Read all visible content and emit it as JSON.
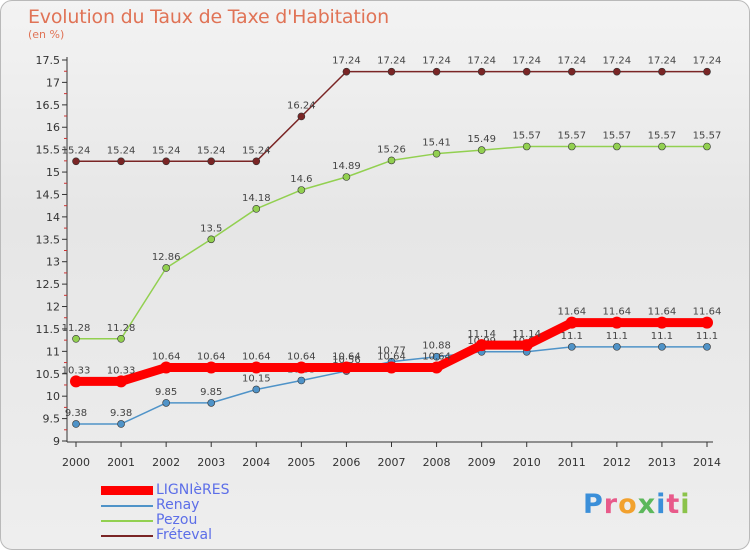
{
  "title": "Evolution du Taux de Taxe d'Habitation",
  "subtitle": "(en %)",
  "logo": {
    "text": "Proxiti"
  },
  "chart_data": {
    "type": "line",
    "title": "Evolution du Taux de Taxe d'Habitation",
    "ylabel": "(en %)",
    "xlabel": "",
    "ylim": [
      9,
      17.5
    ],
    "grid": false,
    "legend_position": "bottom-left",
    "yticks": [
      "9",
      "9.5",
      "10",
      "10.5",
      "11",
      "11.5",
      "12",
      "12.5",
      "13",
      "13.5",
      "14",
      "14.5",
      "15",
      "15.5",
      "16",
      "16.5",
      "17",
      "17.5"
    ],
    "categories": [
      "2000",
      "2001",
      "2002",
      "2003",
      "2004",
      "2005",
      "2006",
      "2007",
      "2008",
      "2009",
      "2010",
      "2011",
      "2012",
      "2013",
      "2014"
    ],
    "series": [
      {
        "name": "Fréteval",
        "color": "#7a2525",
        "values": [
          15.24,
          15.24,
          15.24,
          15.24,
          15.24,
          16.24,
          17.24,
          17.24,
          17.24,
          17.24,
          17.24,
          17.24,
          17.24,
          17.24,
          17.24
        ],
        "labels": [
          "15.24",
          "15.24",
          "15.24",
          "15.24",
          "15.24",
          "16.24",
          "17.24",
          "17.24",
          "17.24",
          "17.24",
          "17.24",
          "17.24",
          "17.24",
          "17.24",
          "17.24"
        ]
      },
      {
        "name": "Pezou",
        "color": "#92d050",
        "values": [
          11.28,
          11.28,
          12.86,
          13.5,
          14.18,
          14.6,
          14.89,
          15.26,
          15.41,
          15.49,
          15.57,
          15.57,
          15.57,
          15.57,
          15.57
        ],
        "labels": [
          "11.28",
          "11.28",
          "12.86",
          "13.5",
          "14.18",
          "14.6",
          "14.89",
          "15.26",
          "15.41",
          "15.49",
          "15.57",
          "15.57",
          "15.57",
          "15.57",
          "15.57"
        ]
      },
      {
        "name": "Renay",
        "color": "#4f93c8",
        "values": [
          9.38,
          9.38,
          9.85,
          9.85,
          10.15,
          10.35,
          10.56,
          10.77,
          10.88,
          10.99,
          10.99,
          11.1,
          11.1,
          11.1,
          11.1
        ],
        "labels": [
          "9.38",
          "9.38",
          "9.85",
          "9.85",
          "10.15",
          "10.35",
          "10.56",
          "10.77",
          "10.88",
          "10.99",
          "10.99",
          "11.1",
          "11.1",
          "11.1",
          "11.1"
        ]
      },
      {
        "name": "LIGNIèRES",
        "color": "#ff0000",
        "values": [
          10.33,
          10.33,
          10.64,
          10.64,
          10.64,
          10.64,
          10.64,
          10.64,
          10.64,
          11.14,
          11.14,
          11.64,
          11.64,
          11.64,
          11.64
        ],
        "labels": [
          "10.33",
          "10.33",
          "10.64",
          "10.64",
          "10.64",
          "10.64",
          "10.64",
          "10.64",
          "10.64",
          "11.14",
          "11.14",
          "11.64",
          "11.64",
          "11.64",
          "11.64"
        ]
      }
    ],
    "legend": [
      {
        "name": "LIGNIèRES",
        "color": "#ff0000"
      },
      {
        "name": "Renay",
        "color": "#4f93c8"
      },
      {
        "name": "Pezou",
        "color": "#92d050"
      },
      {
        "name": "Fréteval",
        "color": "#7a2525"
      }
    ]
  }
}
